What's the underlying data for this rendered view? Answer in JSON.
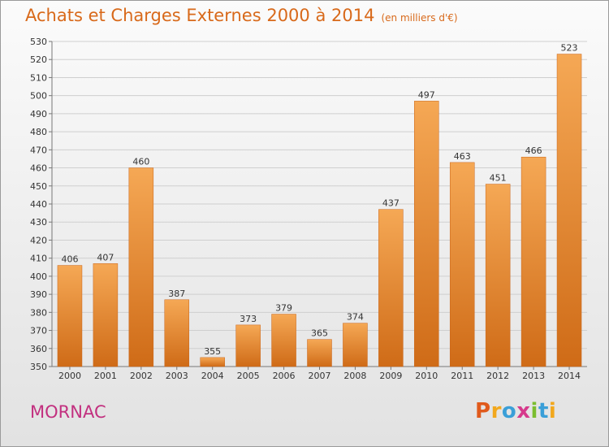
{
  "title": "Achats et Charges Externes 2000 à 2014",
  "subtitle": "(en milliers d'€)",
  "place": "MORNAC",
  "brand": {
    "letters": [
      "P",
      "r",
      "o",
      "x",
      "i",
      "t",
      "i"
    ],
    "colors": [
      "#e05a1c",
      "#f2a81d",
      "#3a9fd8",
      "#d63a8c",
      "#7bbd2f",
      "#3a9fd8",
      "#f2a81d"
    ]
  },
  "colors": {
    "bar_top": "#f5a855",
    "bar_bottom": "#cf6b17",
    "title": "#d8691a",
    "place": "#c2307f"
  },
  "chart_data": {
    "type": "bar",
    "categories": [
      "2000",
      "2001",
      "2002",
      "2003",
      "2004",
      "2005",
      "2006",
      "2007",
      "2008",
      "2009",
      "2010",
      "2011",
      "2012",
      "2013",
      "2014"
    ],
    "values": [
      406,
      407,
      460,
      387,
      355,
      373,
      379,
      365,
      374,
      437,
      497,
      463,
      451,
      466,
      523
    ],
    "title": "Achats et Charges Externes 2000 à 2014",
    "subtitle": "(en milliers d'€)",
    "xlabel": "",
    "ylabel": "",
    "ylim": [
      350,
      530
    ],
    "yticks": [
      350,
      360,
      370,
      380,
      390,
      400,
      410,
      420,
      430,
      440,
      450,
      460,
      470,
      480,
      490,
      500,
      510,
      520,
      530
    ],
    "grid": true
  }
}
